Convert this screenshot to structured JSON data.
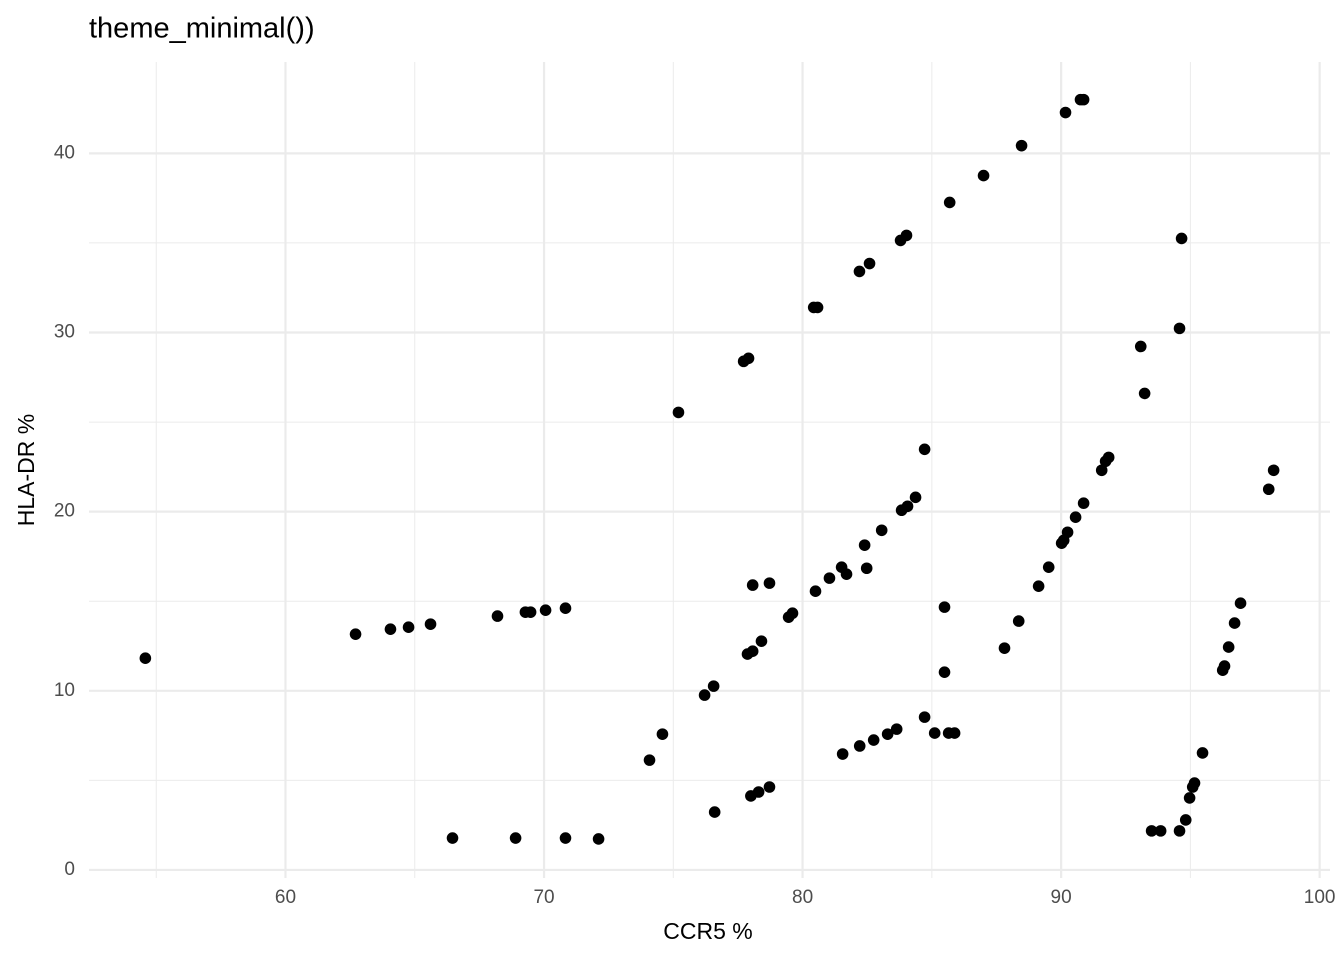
{
  "chart_data": {
    "type": "scatter",
    "title": "theme_minimal())",
    "x_label": "CCR5 %",
    "y_label": "HLA-DR %",
    "color": "#000000",
    "grid": true,
    "xlim": [
      52.4,
      100.4
    ],
    "ylim": [
      -0.45,
      45.1
    ],
    "xticks": [
      60,
      70,
      80,
      90,
      100
    ],
    "yticks": [
      0,
      10,
      20,
      30,
      40
    ],
    "xminor": [
      55,
      65,
      75,
      85,
      95
    ],
    "yminor": [
      5,
      15,
      25,
      35
    ],
    "x": [
      54.58,
      62.71,
      64.06,
      64.76,
      65.61,
      68.2,
      69.28,
      69.48,
      70.06,
      70.83,
      66.46,
      68.9,
      70.83,
      72.11,
      74.08,
      74.58,
      75.2,
      76.21,
      76.56,
      76.6,
      77.72,
      77.91,
      77.87,
      78.07,
      78.41,
      78.07,
      78.72,
      78.0,
      78.3,
      78.72,
      79.46,
      79.61,
      80.43,
      80.58,
      80.5,
      81.04,
      81.51,
      81.7,
      81.55,
      82.2,
      82.59,
      82.4,
      82.48,
      82.21,
      82.75,
      83.06,
      83.29,
      83.64,
      83.79,
      84.02,
      83.83,
      84.06,
      84.37,
      84.72,
      84.72,
      85.11,
      85.49,
      85.49,
      85.65,
      85.88,
      85.69,
      87.0,
      87.81,
      88.36,
      88.47,
      89.13,
      89.52,
      90.02,
      90.1,
      90.25,
      90.56,
      90.87,
      90.17,
      90.75,
      90.87,
      91.57,
      91.72,
      91.84,
      93.23,
      93.08,
      93.5,
      93.85,
      94.58,
      94.66,
      94.58,
      94.82,
      94.97,
      95.09,
      95.16,
      95.47,
      96.25,
      96.32,
      96.48,
      96.71,
      96.94,
      98.03,
      98.22
    ],
    "values": [
      11.82,
      13.16,
      13.44,
      13.55,
      13.72,
      14.17,
      14.39,
      14.39,
      14.5,
      14.61,
      1.78,
      1.78,
      1.78,
      1.73,
      6.13,
      7.58,
      25.54,
      9.76,
      10.26,
      3.23,
      28.39,
      28.56,
      12.05,
      12.21,
      12.77,
      15.9,
      16.01,
      4.13,
      4.35,
      4.63,
      14.11,
      14.33,
      31.4,
      31.4,
      15.56,
      16.29,
      16.9,
      16.51,
      6.47,
      33.41,
      33.85,
      18.13,
      16.84,
      6.92,
      7.25,
      18.96,
      7.58,
      7.86,
      35.14,
      35.42,
      20.08,
      20.3,
      20.8,
      23.48,
      8.53,
      7.64,
      14.67,
      11.04,
      7.64,
      7.64,
      37.26,
      38.76,
      12.38,
      13.89,
      40.43,
      15.84,
      16.9,
      18.24,
      18.4,
      18.85,
      19.69,
      20.47,
      42.28,
      43.0,
      43.0,
      22.31,
      22.81,
      23.03,
      26.6,
      29.22,
      2.18,
      2.18,
      30.23,
      35.25,
      2.18,
      2.79,
      4.02,
      4.63,
      4.85,
      6.53,
      11.15,
      11.38,
      12.44,
      13.78,
      14.89,
      21.25,
      22.31
    ]
  }
}
